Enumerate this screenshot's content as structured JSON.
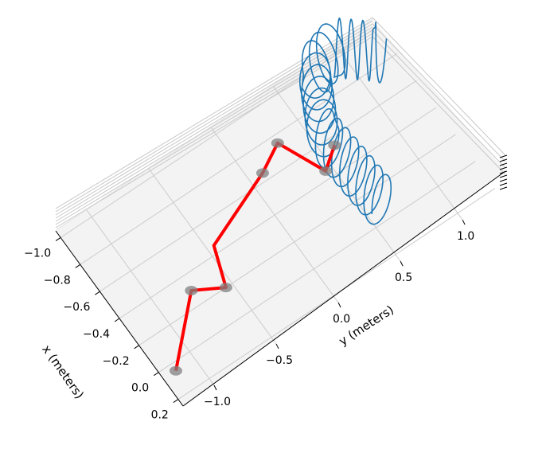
{
  "chart_data": {
    "type": "line3d",
    "xlabel": "x (meters)",
    "ylabel": "y (meters)",
    "zlabel": "",
    "x_ticks": [
      "−1.0",
      "−0.8",
      "−0.6",
      "−0.4",
      "−0.2",
      "0.0",
      "0.2"
    ],
    "y_ticks": [
      "−1.0",
      "−0.5",
      "0.0",
      "0.5",
      "1.0"
    ],
    "xlim": [
      -1.05,
      0.25
    ],
    "ylim": [
      -1.25,
      1.3
    ],
    "grid": true,
    "colors": {
      "spring": "#1f77b4",
      "arm": "#ff0000",
      "joint": "#808080",
      "pane": "#ebebeb",
      "grid": "#cccccc"
    },
    "series": [
      {
        "type": "coil",
        "description_key": "spring",
        "windings": 20,
        "path": "U-shaped coil from (x,y)=(-0.05,0.6) up to (-1.0,0.75) around to (-0.8,1.2)"
      },
      {
        "type": "polyline",
        "description_key": "arm",
        "points": [
          [
            0.05,
            -1.15
          ],
          [
            -0.3,
            -0.75
          ],
          [
            -0.2,
            -0.55
          ],
          [
            -0.45,
            -0.45
          ],
          [
            -0.65,
            0.1
          ],
          [
            -0.75,
            0.3
          ],
          [
            -0.45,
            0.45
          ],
          [
            -0.55,
            0.6
          ]
        ]
      }
    ]
  }
}
